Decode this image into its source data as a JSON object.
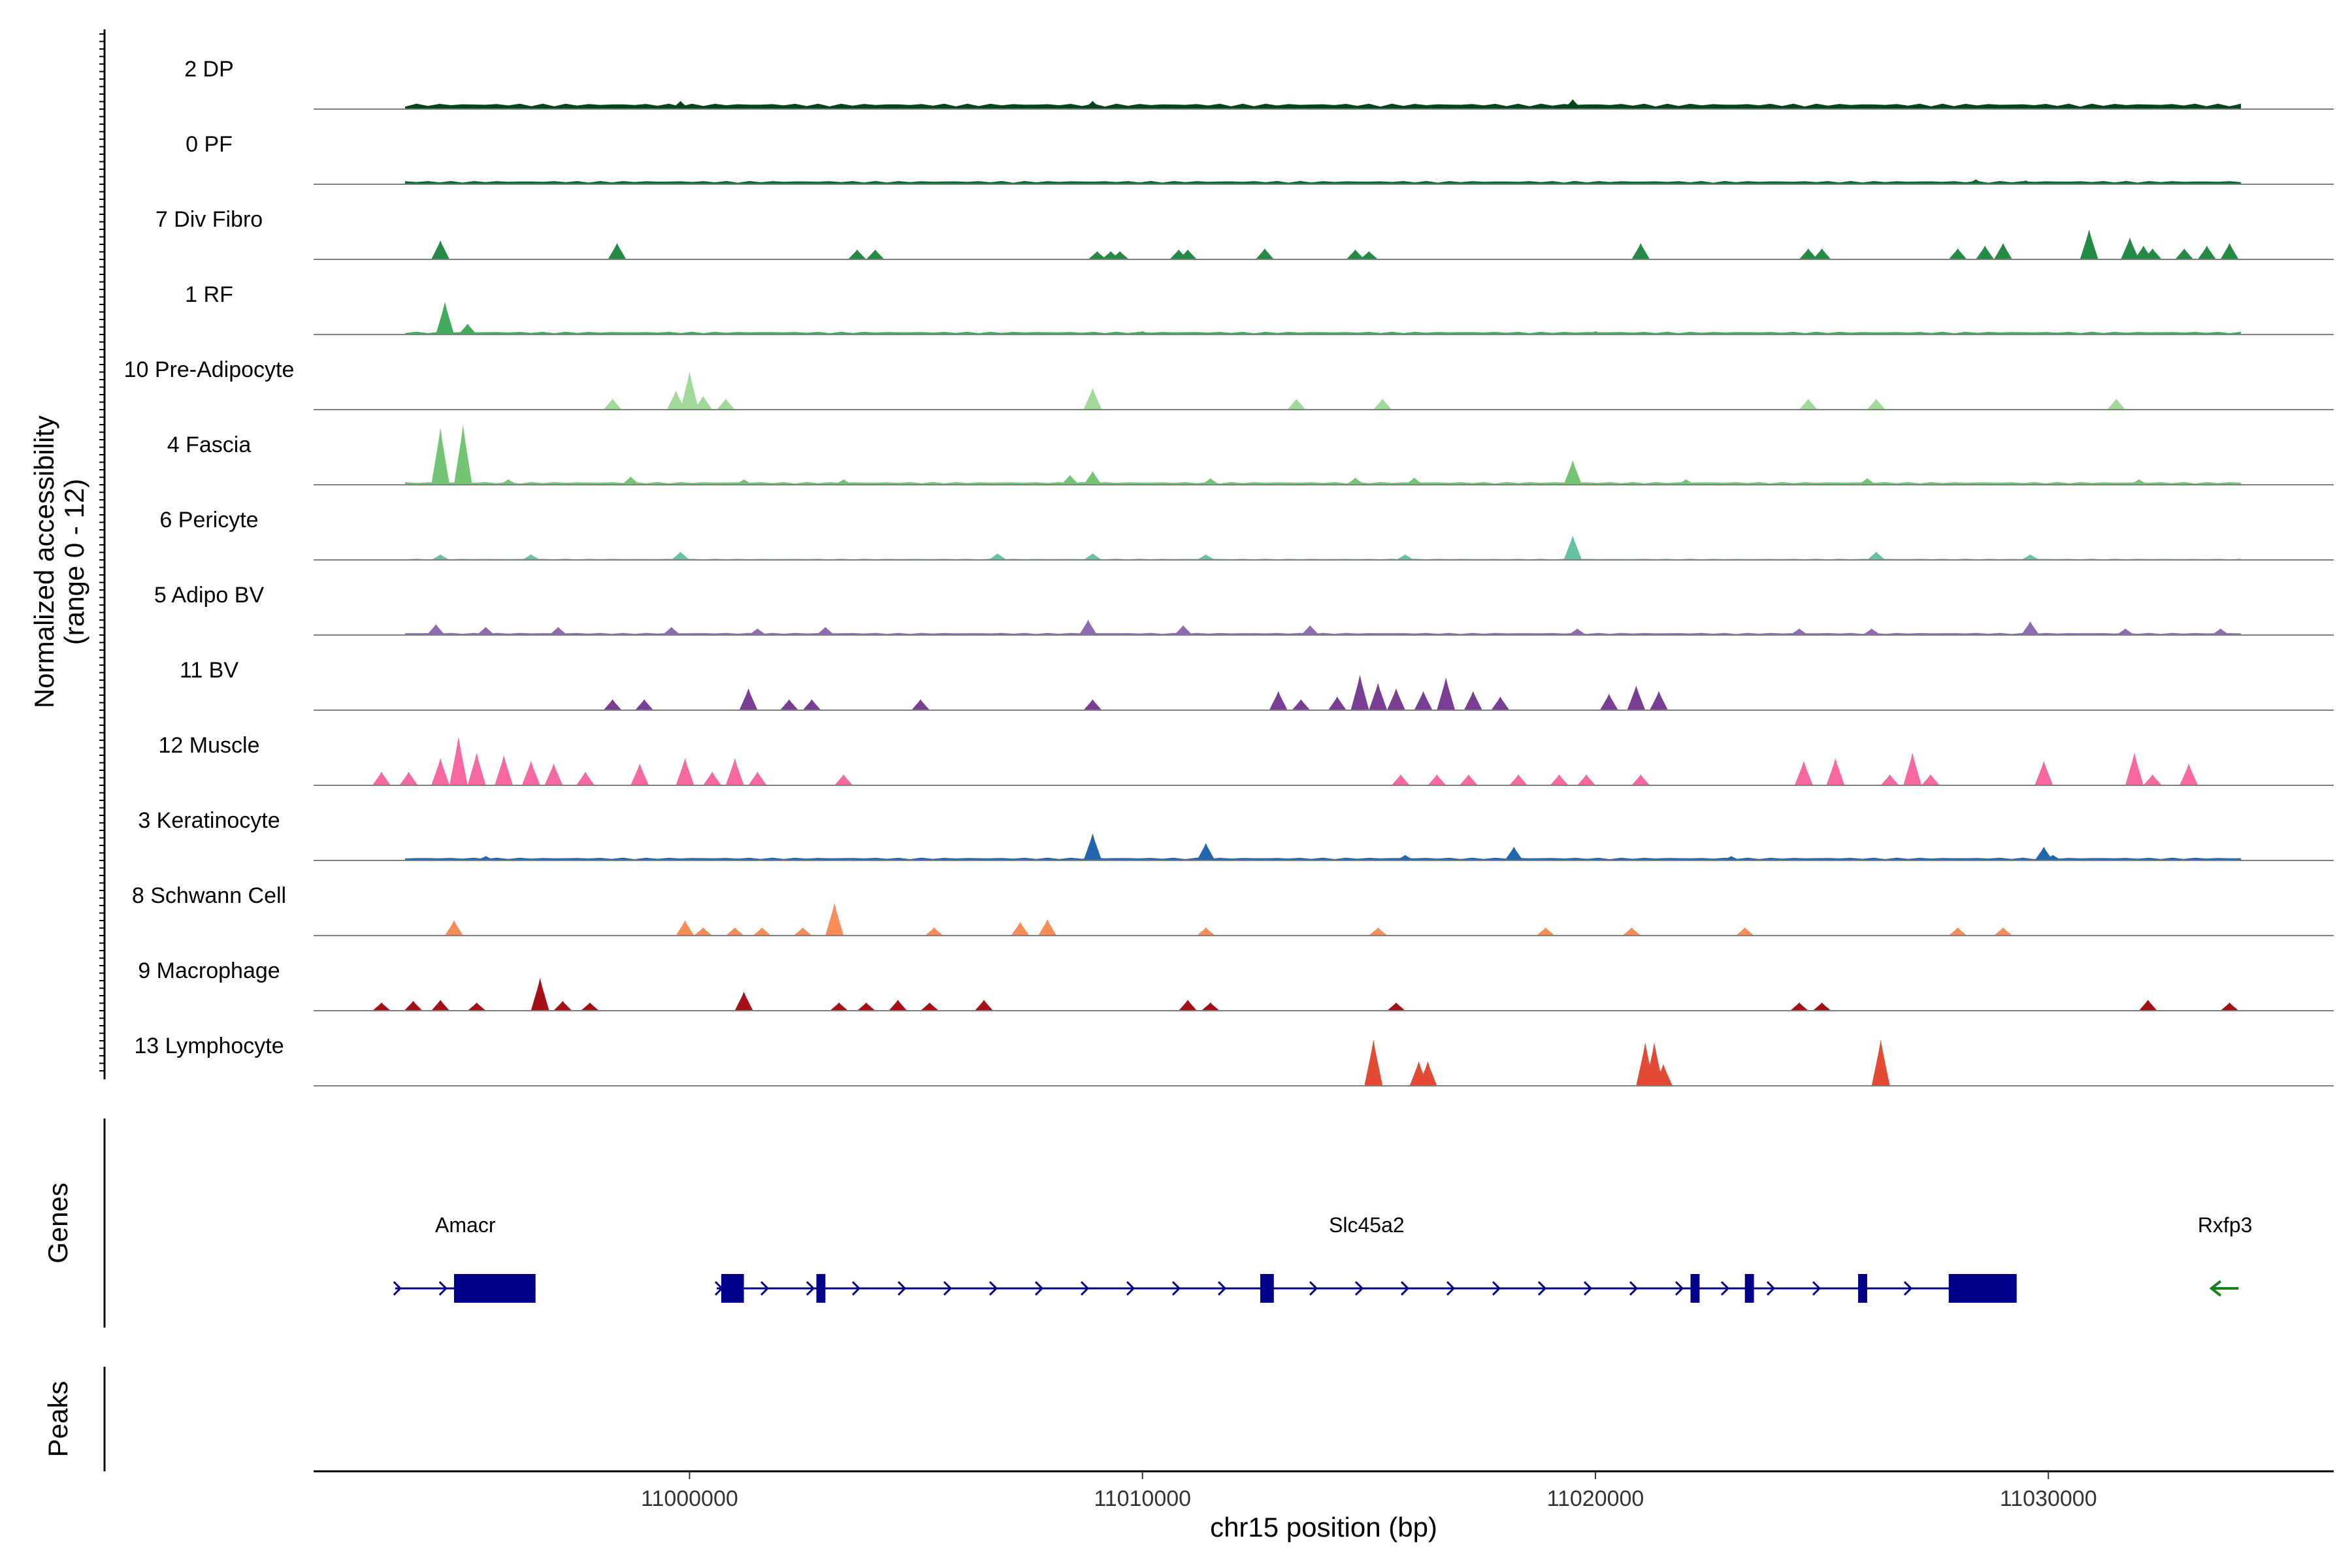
{
  "chart_data": {
    "type": "coverage",
    "xlabel": "chr15 position (bp)",
    "ylabel_line1": "Normalized accessibility",
    "ylabel_line2": "(range 0 - 12)",
    "y_range": [
      0,
      12
    ],
    "xlim": [
      10991700,
      11036300
    ],
    "x_ticks": [
      11000000,
      11010000,
      11020000,
      11030000
    ],
    "x_tick_labels": [
      "11000000",
      "11010000",
      "11020000",
      "11030000"
    ],
    "tracks": [
      {
        "label": "2 DP",
        "color": "#00441b",
        "level": 1.0,
        "peaks": [
          [
            10994500,
            0.6
          ],
          [
            10997200,
            0.7
          ],
          [
            10999800,
            1.5
          ],
          [
            11000200,
            0.8
          ],
          [
            11004100,
            0.6
          ],
          [
            11008900,
            1.5
          ],
          [
            11019500,
            1.8
          ],
          [
            11023000,
            0.7
          ],
          [
            11027000,
            0.6
          ],
          [
            11031800,
            0.8
          ],
          [
            11032500,
            0.6
          ]
        ]
      },
      {
        "label": "0 PF",
        "color": "#006d2c",
        "level": 0.6,
        "peaks": [
          [
            11008900,
            0.5
          ],
          [
            11015200,
            0.5
          ],
          [
            11019500,
            0.6
          ],
          [
            11028400,
            0.9
          ],
          [
            11029500,
            0.7
          ]
        ]
      },
      {
        "label": "7 Div Fibro",
        "color": "#238b45",
        "level": 0,
        "peaks": [
          [
            10994500,
            3.5
          ],
          [
            10998400,
            3.0
          ],
          [
            11003700,
            1.8
          ],
          [
            11004100,
            1.8
          ],
          [
            11009000,
            1.5
          ],
          [
            11009300,
            1.5
          ],
          [
            11009500,
            1.5
          ],
          [
            11010800,
            1.8
          ],
          [
            11011000,
            1.8
          ],
          [
            11012700,
            2.0
          ],
          [
            11014700,
            1.8
          ],
          [
            11015000,
            1.5
          ],
          [
            11021000,
            3.0
          ],
          [
            11024700,
            2.0
          ],
          [
            11025000,
            2.0
          ],
          [
            11028000,
            2.0
          ],
          [
            11028600,
            2.5
          ],
          [
            11029000,
            3.0
          ],
          [
            11030900,
            5.5
          ],
          [
            11031800,
            4.0
          ],
          [
            11032100,
            2.5
          ],
          [
            11032300,
            2.0
          ],
          [
            11033000,
            2.0
          ],
          [
            11033500,
            2.5
          ],
          [
            11034000,
            3.0
          ]
        ]
      },
      {
        "label": "1 RF",
        "color": "#41ab5d",
        "level": 0.5,
        "peaks": [
          [
            10994600,
            6.0
          ],
          [
            10995100,
            2.0
          ],
          [
            11010000,
            0.6
          ],
          [
            11020000,
            0.6
          ]
        ]
      },
      {
        "label": "10 Pre-Adipocyte",
        "color": "#a1d99b",
        "level": 0,
        "peaks": [
          [
            10998300,
            2.0
          ],
          [
            10999700,
            3.5
          ],
          [
            11000000,
            7.0
          ],
          [
            11000300,
            2.5
          ],
          [
            11000800,
            2.0
          ],
          [
            11008900,
            4.0
          ],
          [
            11013400,
            2.0
          ],
          [
            11015300,
            2.0
          ],
          [
            11024700,
            2.0
          ],
          [
            11026200,
            2.0
          ],
          [
            11031500,
            2.0
          ]
        ]
      },
      {
        "label": "4 Fascia",
        "color": "#74c476",
        "level": 0.5,
        "peaks": [
          [
            10994500,
            10.5
          ],
          [
            10995000,
            11.0
          ],
          [
            10996000,
            1.0
          ],
          [
            10998700,
            1.5
          ],
          [
            11001200,
            1.0
          ],
          [
            11003400,
            1.0
          ],
          [
            11008400,
            1.8
          ],
          [
            11008900,
            2.5
          ],
          [
            11011500,
            1.2
          ],
          [
            11014700,
            1.3
          ],
          [
            11016000,
            1.3
          ],
          [
            11019500,
            4.5
          ],
          [
            11022000,
            1.0
          ],
          [
            11026000,
            1.2
          ],
          [
            11032000,
            1.0
          ]
        ]
      },
      {
        "label": "6 Pericyte",
        "color": "#66c2a4",
        "level": 0.2,
        "peaks": [
          [
            10994500,
            1.0
          ],
          [
            10996500,
            1.0
          ],
          [
            10999800,
            1.5
          ],
          [
            11006800,
            1.2
          ],
          [
            11008900,
            1.2
          ],
          [
            11011400,
            1.0
          ],
          [
            11015800,
            1.0
          ],
          [
            11019500,
            4.5
          ],
          [
            11026200,
            1.5
          ],
          [
            11029600,
            1.0
          ]
        ]
      },
      {
        "label": "5 Adipo BV",
        "color": "#8c6bb1",
        "level": 0.4,
        "peaks": [
          [
            10994400,
            2.0
          ],
          [
            10995500,
            1.5
          ],
          [
            10997100,
            1.5
          ],
          [
            10999600,
            1.5
          ],
          [
            11001500,
            1.2
          ],
          [
            11003000,
            1.5
          ],
          [
            11008800,
            2.8
          ],
          [
            11010900,
            1.8
          ],
          [
            11013700,
            1.8
          ],
          [
            11019600,
            1.2
          ],
          [
            11024500,
            1.2
          ],
          [
            11026100,
            1.2
          ],
          [
            11029600,
            2.5
          ],
          [
            11031700,
            1.2
          ],
          [
            11033800,
            1.2
          ]
        ]
      },
      {
        "label": "11 BV",
        "color": "#7a3d94",
        "level": 0,
        "peaks": [
          [
            10998300,
            2.0
          ],
          [
            10999000,
            2.0
          ],
          [
            11001300,
            4.0
          ],
          [
            11002200,
            2.0
          ],
          [
            11002700,
            2.0
          ],
          [
            11005100,
            2.0
          ],
          [
            11008900,
            2.0
          ],
          [
            11013000,
            3.5
          ],
          [
            11013500,
            2.0
          ],
          [
            11014300,
            2.5
          ],
          [
            11014800,
            6.5
          ],
          [
            11015200,
            5.0
          ],
          [
            11015600,
            4.0
          ],
          [
            11016200,
            3.5
          ],
          [
            11016700,
            6.0
          ],
          [
            11017300,
            3.5
          ],
          [
            11017900,
            2.5
          ],
          [
            11020300,
            3.0
          ],
          [
            11020900,
            4.5
          ],
          [
            11021400,
            3.5
          ]
        ]
      },
      {
        "label": "12 Muscle",
        "color": "#f768a1",
        "level": 0,
        "peaks": [
          [
            10993200,
            2.5
          ],
          [
            10993800,
            2.5
          ],
          [
            10994500,
            5.0
          ],
          [
            10994900,
            9.0
          ],
          [
            10995300,
            6.0
          ],
          [
            10995900,
            5.5
          ],
          [
            10996500,
            4.5
          ],
          [
            10997000,
            4.0
          ],
          [
            10997700,
            2.5
          ],
          [
            10998900,
            4.0
          ],
          [
            10999900,
            5.0
          ],
          [
            11000500,
            2.5
          ],
          [
            11001000,
            5.0
          ],
          [
            11001500,
            2.5
          ],
          [
            11003400,
            2.0
          ],
          [
            11015700,
            2.0
          ],
          [
            11016500,
            2.0
          ],
          [
            11017200,
            2.0
          ],
          [
            11018300,
            2.0
          ],
          [
            11019200,
            2.0
          ],
          [
            11019800,
            2.0
          ],
          [
            11021000,
            2.0
          ],
          [
            11024600,
            4.5
          ],
          [
            11025300,
            5.0
          ],
          [
            11026500,
            2.0
          ],
          [
            11027000,
            6.0
          ],
          [
            11027400,
            2.0
          ],
          [
            11029900,
            4.5
          ],
          [
            11031900,
            6.0
          ],
          [
            11032300,
            2.0
          ],
          [
            11033100,
            4.0
          ]
        ]
      },
      {
        "label": "3 Keratinocyte",
        "color": "#2166ac",
        "level": 0.5,
        "peaks": [
          [
            10995500,
            0.8
          ],
          [
            11008900,
            5.0
          ],
          [
            11011400,
            3.2
          ],
          [
            11015800,
            1.0
          ],
          [
            11018200,
            2.5
          ],
          [
            11023000,
            0.8
          ],
          [
            11029900,
            2.5
          ],
          [
            11030100,
            1.0
          ]
        ]
      },
      {
        "label": "8 Schwann Cell",
        "color": "#fc8d59",
        "level": 0,
        "peaks": [
          [
            10994800,
            2.8
          ],
          [
            10999900,
            2.8
          ],
          [
            11000300,
            1.5
          ],
          [
            11001000,
            1.5
          ],
          [
            11001600,
            1.5
          ],
          [
            11002500,
            1.5
          ],
          [
            11003200,
            6.0
          ],
          [
            11005400,
            1.5
          ],
          [
            11007300,
            2.5
          ],
          [
            11007900,
            3.0
          ],
          [
            11011400,
            1.5
          ],
          [
            11015200,
            1.5
          ],
          [
            11018900,
            1.5
          ],
          [
            11020800,
            1.5
          ],
          [
            11023300,
            1.5
          ],
          [
            11028000,
            1.5
          ],
          [
            11029000,
            1.5
          ]
        ]
      },
      {
        "label": "9 Macrophage",
        "color": "#a50f15",
        "level": 0,
        "peaks": [
          [
            10993200,
            1.5
          ],
          [
            10993900,
            1.8
          ],
          [
            10994500,
            2.0
          ],
          [
            10995300,
            1.5
          ],
          [
            10996700,
            6.0
          ],
          [
            10997200,
            1.8
          ],
          [
            10997800,
            1.5
          ],
          [
            11001200,
            3.5
          ],
          [
            11003300,
            1.5
          ],
          [
            11003900,
            1.5
          ],
          [
            11004600,
            2.0
          ],
          [
            11005300,
            1.5
          ],
          [
            11006500,
            2.0
          ],
          [
            11011000,
            2.0
          ],
          [
            11011500,
            1.5
          ],
          [
            11015600,
            1.5
          ],
          [
            11024500,
            1.5
          ],
          [
            11025000,
            1.5
          ],
          [
            11032200,
            2.0
          ],
          [
            11034000,
            1.5
          ]
        ]
      },
      {
        "label": "13 Lymphocyte",
        "color": "#e34a33",
        "level": 0,
        "peaks": [
          [
            11015100,
            8.5
          ],
          [
            11016100,
            4.5
          ],
          [
            11016300,
            4.5
          ],
          [
            11021100,
            8.0
          ],
          [
            11021300,
            8.0
          ],
          [
            11021500,
            4.0
          ],
          [
            11026300,
            8.5
          ]
        ]
      }
    ],
    "genes_title": "Genes",
    "peaks_title": "Peaks",
    "genes": [
      {
        "name": "Amacr",
        "start": 10993500,
        "end": 10996600,
        "strand": "+",
        "color": "#00008b",
        "exons": [
          [
            10994800,
            10996600
          ]
        ]
      },
      {
        "name": "Slc45a2",
        "start": 11000600,
        "end": 11029300,
        "strand": "+",
        "color": "#00008b",
        "exons": [
          [
            11000700,
            11001200
          ],
          [
            11002800,
            11003000
          ],
          [
            11012600,
            11012900
          ],
          [
            11022100,
            11022300
          ],
          [
            11023300,
            11023500
          ],
          [
            11025800,
            11026000
          ],
          [
            11027800,
            11029300
          ]
        ]
      },
      {
        "name": "Rxfp3",
        "start": 11033600,
        "end": 11034200,
        "strand": "-",
        "color": "#1a7f1a",
        "exons": []
      }
    ]
  }
}
